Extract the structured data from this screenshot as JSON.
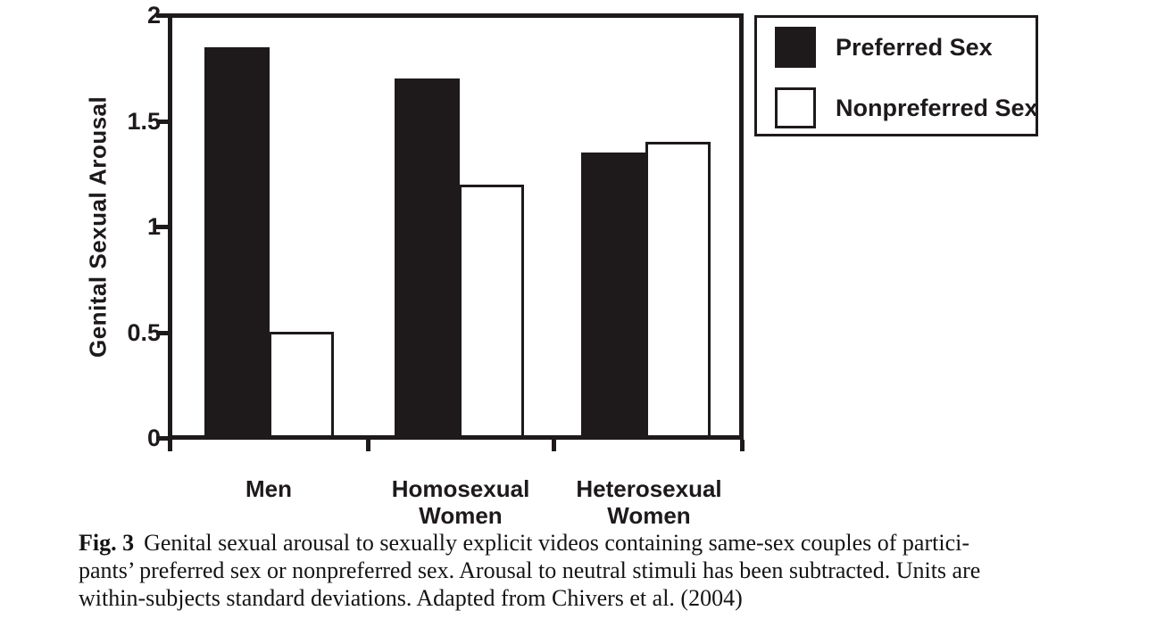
{
  "chart_data": {
    "type": "bar",
    "title": "",
    "xlabel": "",
    "ylabel": "Genital Sexual Arousal",
    "ylim": [
      0,
      2
    ],
    "yticks": [
      0,
      0.5,
      1,
      1.5,
      2
    ],
    "ytick_labels": [
      "0",
      "0.5",
      "1",
      "1.5",
      "2"
    ],
    "grid": false,
    "legend_position": "outside-top-right",
    "categories": [
      [
        "Men"
      ],
      [
        "Homosexual",
        "Women"
      ],
      [
        "Heterosexual",
        "Women"
      ]
    ],
    "series": [
      {
        "name": "Preferred Sex",
        "fill": "#1e1a1b",
        "values": [
          1.85,
          1.7,
          1.35
        ]
      },
      {
        "name": "Nonpreferred Sex",
        "fill": "#ffffff",
        "values": [
          0.5,
          1.2,
          1.4
        ]
      }
    ],
    "colors": {
      "ink": "#1e1a1b",
      "background": "#ffffff"
    }
  },
  "figure": {
    "caption": {
      "label": "Fig. 3",
      "lines": [
        "Genital sexual arousal to sexually explicit videos containing same-sex couples of partici-",
        "pants’ preferred sex or nonpreferred sex. Arousal to neutral stimuli has been subtracted. Units are",
        "within-subjects standard deviations. Adapted from Chivers et al. (2004)"
      ]
    }
  }
}
